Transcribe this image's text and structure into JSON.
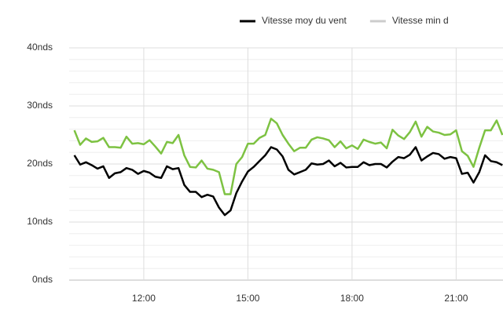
{
  "chart_data": {
    "type": "line",
    "x": [
      600,
      610,
      620,
      630,
      640,
      650,
      660,
      670,
      680,
      690,
      700,
      710,
      720,
      730,
      740,
      750,
      760,
      770,
      780,
      790,
      800,
      810,
      820,
      830,
      840,
      850,
      860,
      870,
      880,
      890,
      900,
      910,
      920,
      930,
      940,
      950,
      960,
      970,
      980,
      990,
      1000,
      1010,
      1020,
      1030,
      1040,
      1050,
      1060,
      1070,
      1080,
      1090,
      1100,
      1110,
      1120,
      1130,
      1140,
      1150,
      1160,
      1170,
      1180,
      1190,
      1200,
      1210,
      1220,
      1230,
      1240,
      1250,
      1260,
      1270,
      1280,
      1290,
      1300,
      1310,
      1320,
      1330,
      1340
    ],
    "series": [
      {
        "name": "Vitesse moy du vent",
        "color": "#000000",
        "visible": true,
        "values": [
          21.5,
          19.9,
          20.3,
          19.8,
          19.2,
          19.6,
          17.6,
          18.4,
          18.6,
          19.3,
          19.0,
          18.3,
          18.8,
          18.5,
          17.8,
          17.6,
          19.6,
          19.1,
          19.3,
          16.4,
          15.2,
          15.2,
          14.3,
          14.7,
          14.4,
          12.5,
          11.2,
          12.0,
          15.0,
          17.0,
          18.7,
          19.5,
          20.5,
          21.5,
          22.9,
          22.5,
          21.3,
          19.0,
          18.2,
          18.6,
          19.0,
          20.1,
          19.9,
          20.0,
          20.6,
          19.6,
          20.2,
          19.4,
          19.5,
          19.5,
          20.3,
          19.8,
          20.0,
          20.0,
          19.4,
          20.4,
          21.2,
          21.0,
          21.6,
          22.9,
          20.6,
          21.3,
          21.9,
          21.7,
          20.9,
          21.2,
          21.0,
          18.3,
          18.5,
          16.8,
          18.6,
          21.5,
          20.5,
          20.3,
          19.8
        ]
      },
      {
        "name": "Vitesse min d",
        "color": "#cccccc",
        "visible": false
      },
      {
        "color": "#7dc242",
        "visible": true,
        "values": [
          25.8,
          23.3,
          24.4,
          23.8,
          23.9,
          24.5,
          22.9,
          22.9,
          22.8,
          24.7,
          23.5,
          23.6,
          23.4,
          24.1,
          23.0,
          21.8,
          23.8,
          23.6,
          25.0,
          21.5,
          19.5,
          19.4,
          20.6,
          19.2,
          19.0,
          18.6,
          14.8,
          14.8,
          20.0,
          21.2,
          23.5,
          23.5,
          24.5,
          25.0,
          27.8,
          27.0,
          25.0,
          23.5,
          22.2,
          22.8,
          22.8,
          24.2,
          24.6,
          24.4,
          24.1,
          22.9,
          23.9,
          22.7,
          23.2,
          22.6,
          24.2,
          23.8,
          23.5,
          23.7,
          22.7,
          25.9,
          24.9,
          24.3,
          25.5,
          27.3,
          24.7,
          26.4,
          25.6,
          25.4,
          25.0,
          25.1,
          25.8,
          22.2,
          21.4,
          19.5,
          22.8,
          25.8,
          25.8,
          27.5,
          25.0
        ]
      }
    ],
    "xlim": [
      591,
      1341
    ],
    "xticks": [
      {
        "value": 720,
        "label": "12:00"
      },
      {
        "value": 900,
        "label": "15:00"
      },
      {
        "value": 1080,
        "label": "18:00"
      },
      {
        "value": 1260,
        "label": "21:00"
      }
    ],
    "ylim": [
      0,
      40
    ],
    "yticks": [
      {
        "value": 0,
        "label": "0nds"
      },
      {
        "value": 10,
        "label": "10nds"
      },
      {
        "value": 20,
        "label": "20nds"
      },
      {
        "value": 30,
        "label": "30nds"
      },
      {
        "value": 40,
        "label": "40nds"
      }
    ],
    "minor_yticks": [
      2,
      4,
      6,
      8,
      12,
      14,
      16,
      18,
      22,
      24,
      26,
      28,
      32,
      34,
      36,
      38
    ],
    "grid": true,
    "legend": "top"
  }
}
